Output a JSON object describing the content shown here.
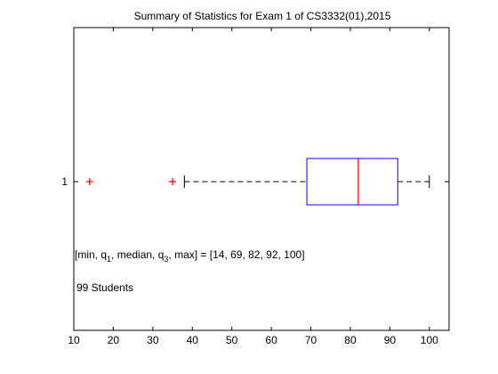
{
  "chart_data": {
    "type": "boxplot",
    "title": "Summary of Statistics for Exam 1 of CS3332(01),2015",
    "xlabel": "",
    "ylabel": "",
    "xlim": [
      10,
      105
    ],
    "xticks": [
      10,
      20,
      30,
      40,
      50,
      60,
      70,
      80,
      90,
      100
    ],
    "series": [
      {
        "category": "1",
        "whisker_low": 38,
        "q1": 69,
        "median": 82,
        "q3": 92,
        "whisker_high": 100,
        "outliers": [
          14,
          35
        ]
      }
    ],
    "annotations": {
      "stats_prefix": "[min, q",
      "stats_sub1": "1",
      "stats_mid": ", median, q",
      "stats_sub3": "3",
      "stats_suffix": ", max] = [14, 69, 82, 92, 100]",
      "students": "99 Students"
    },
    "colors": {
      "box": "#0000ff",
      "median": "#ff0000",
      "outlier": "#ff0000",
      "whisker": "#000000"
    }
  }
}
